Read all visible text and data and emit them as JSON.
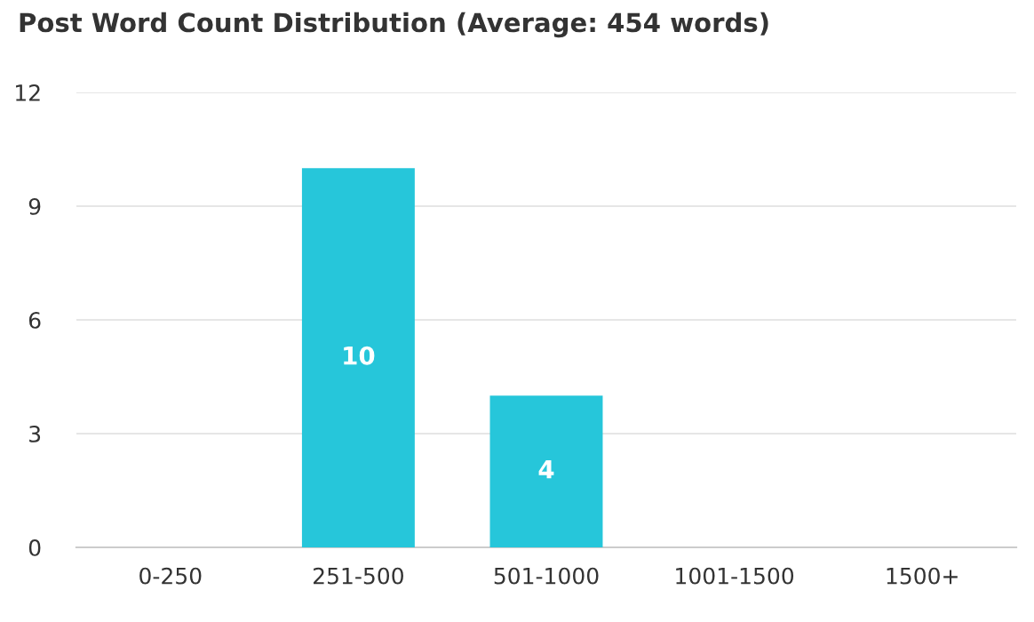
{
  "chart_data": {
    "type": "bar",
    "title": "Post Word Count Distribution (Average: 454 words)",
    "categories": [
      "0-250",
      "251-500",
      "501-1000",
      "1001-1500",
      "1500+"
    ],
    "values": [
      0,
      10,
      4,
      0,
      0
    ],
    "color": "#26c6da",
    "value_labels": [
      null,
      "10",
      "4",
      null,
      null
    ],
    "ylim": [
      0,
      12
    ],
    "yticks": [
      0,
      3,
      6,
      9,
      12
    ],
    "grid": "y",
    "legend": false
  }
}
